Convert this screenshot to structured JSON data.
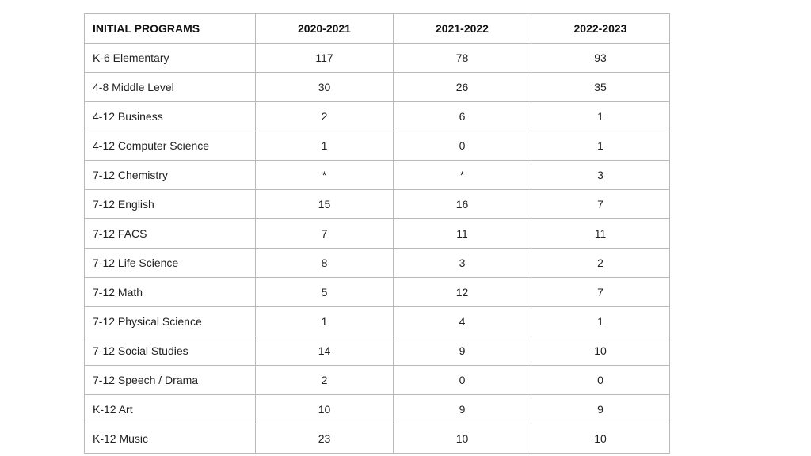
{
  "table": {
    "headers": [
      "INITIAL PROGRAMS",
      "2020-2021",
      "2021-2022",
      "2022-2023"
    ],
    "rows": [
      [
        "K-6 Elementary",
        "117",
        "78",
        "93"
      ],
      [
        "4-8 Middle Level",
        "30",
        "26",
        "35"
      ],
      [
        "4-12 Business",
        "2",
        "6",
        "1"
      ],
      [
        "4-12 Computer Science",
        "1",
        "0",
        "1"
      ],
      [
        "7-12 Chemistry",
        "*",
        "*",
        "3"
      ],
      [
        "7-12 English",
        "15",
        "16",
        "7"
      ],
      [
        "7-12 FACS",
        "7",
        "11",
        "11"
      ],
      [
        "7-12 Life Science",
        "8",
        "3",
        "2"
      ],
      [
        "7-12 Math",
        "5",
        "12",
        "7"
      ],
      [
        "7-12 Physical Science",
        "1",
        "4",
        "1"
      ],
      [
        "7-12 Social Studies",
        "14",
        "9",
        "10"
      ],
      [
        "7-12 Speech / Drama",
        "2",
        "0",
        "0"
      ],
      [
        "K-12 Art",
        "10",
        "9",
        "9"
      ],
      [
        "K-12 Music",
        "23",
        "10",
        "10"
      ]
    ]
  },
  "colors": {
    "border": "#b9b9b9",
    "text": "#222222",
    "background": "#ffffff"
  }
}
